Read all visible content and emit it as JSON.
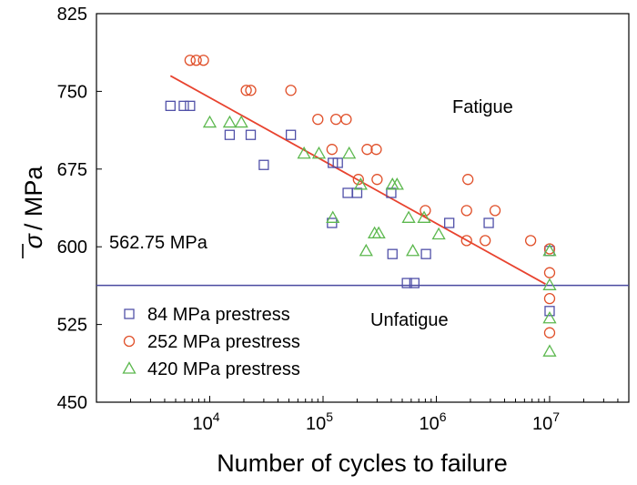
{
  "chart_data": {
    "type": "scatter",
    "xlabel": "Number of cycles to failure",
    "ylabel_symbol": "σ",
    "ylabel_unit": "/ MPa",
    "x_scale": "log",
    "xlim": [
      1000,
      50000000
    ],
    "ylim": [
      450,
      825
    ],
    "y_ticks": [
      450,
      525,
      600,
      675,
      750,
      825
    ],
    "x_ticks": [
      {
        "value": 10000,
        "base": "10",
        "exp": "4"
      },
      {
        "value": 100000,
        "base": "10",
        "exp": "5"
      },
      {
        "value": 1000000,
        "base": "10",
        "exp": "6"
      },
      {
        "value": 10000000,
        "base": "10",
        "exp": "7"
      }
    ],
    "legend_position": "bottom-left",
    "series": [
      {
        "name": "84 MPa prestress",
        "marker": "square",
        "color": "#5050a8",
        "points": [
          [
            4500,
            736
          ],
          [
            5900,
            736
          ],
          [
            6700,
            736
          ],
          [
            15000,
            708
          ],
          [
            23000,
            708
          ],
          [
            30000,
            679
          ],
          [
            52000,
            708
          ],
          [
            120000,
            623
          ],
          [
            122000,
            681
          ],
          [
            135000,
            681
          ],
          [
            165000,
            652
          ],
          [
            200000,
            652
          ],
          [
            400000,
            652
          ],
          [
            410000,
            593
          ],
          [
            550000,
            565
          ],
          [
            640000,
            565
          ],
          [
            810000,
            593
          ],
          [
            1300000,
            623
          ],
          [
            2900000,
            623
          ],
          [
            10000000,
            596
          ],
          [
            10000000,
            538
          ]
        ]
      },
      {
        "name": "252 MPa prestress",
        "marker": "circle",
        "color": "#e0502a",
        "points": [
          [
            6700,
            780
          ],
          [
            7600,
            780
          ],
          [
            8800,
            780
          ],
          [
            21000,
            751
          ],
          [
            23000,
            751
          ],
          [
            52000,
            751
          ],
          [
            90000,
            723
          ],
          [
            120000,
            694
          ],
          [
            130000,
            723
          ],
          [
            160000,
            723
          ],
          [
            205000,
            665
          ],
          [
            245000,
            694
          ],
          [
            295000,
            694
          ],
          [
            300000,
            665
          ],
          [
            800000,
            635
          ],
          [
            1850000,
            635
          ],
          [
            1850000,
            606
          ],
          [
            1900000,
            665
          ],
          [
            2700000,
            606
          ],
          [
            3300000,
            635
          ],
          [
            6800000,
            606
          ],
          [
            10000000,
            598
          ],
          [
            10000000,
            575
          ],
          [
            10000000,
            550
          ],
          [
            10000000,
            517
          ]
        ]
      },
      {
        "name": "420 MPa prestress",
        "marker": "triangle",
        "color": "#5cb84e",
        "points": [
          [
            10000,
            720
          ],
          [
            15000,
            720
          ],
          [
            19000,
            720
          ],
          [
            68000,
            690
          ],
          [
            92000,
            690
          ],
          [
            170000,
            690
          ],
          [
            122000,
            628
          ],
          [
            215000,
            660
          ],
          [
            240000,
            596
          ],
          [
            285000,
            613
          ],
          [
            310000,
            613
          ],
          [
            410000,
            660
          ],
          [
            450000,
            660
          ],
          [
            570000,
            628
          ],
          [
            620000,
            596
          ],
          [
            780000,
            628
          ],
          [
            1050000,
            612
          ],
          [
            10000000,
            596
          ],
          [
            10000000,
            563
          ],
          [
            10000000,
            531
          ],
          [
            10000000,
            499
          ]
        ]
      }
    ],
    "fit_line": {
      "from": [
        4500,
        765
      ],
      "to": [
        9200000,
        564
      ],
      "color": "#e8432f"
    },
    "threshold": {
      "value": 562.75,
      "label": "562.75 MPa",
      "color": "#4a4aa0"
    },
    "annotations": {
      "fatigue": "Fatigue",
      "unfatigue": "Unfatigue"
    }
  }
}
